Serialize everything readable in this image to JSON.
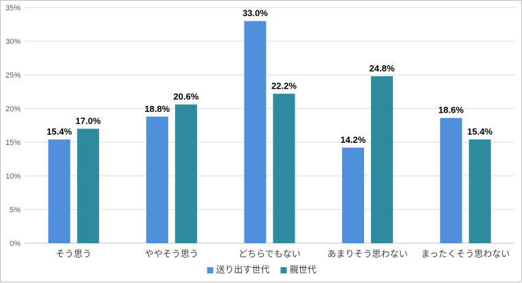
{
  "chart_data": {
    "type": "bar",
    "categories": [
      "そう思う",
      "ややそう思う",
      "どちらでもない",
      "あまりそう思わない",
      "まったくそう思わない"
    ],
    "series": [
      {
        "name": "送り出す世代",
        "color": "#4f8fdc",
        "values": [
          15.4,
          18.8,
          33.0,
          14.2,
          18.6
        ]
      },
      {
        "name": "親世代",
        "color": "#2e8a9e",
        "values": [
          17.0,
          20.6,
          22.2,
          24.8,
          15.4
        ]
      }
    ],
    "yticks": [
      "0%",
      "5%",
      "10%",
      "15%",
      "20%",
      "25%",
      "30%",
      "35%"
    ],
    "ylim": [
      0,
      35
    ],
    "value_suffix": "%",
    "grid": true,
    "legend_position": "bottom"
  }
}
